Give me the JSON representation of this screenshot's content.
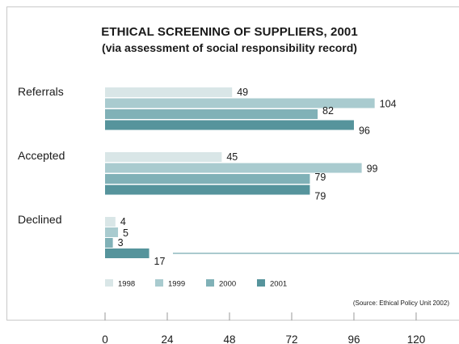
{
  "chart_data": {
    "type": "bar",
    "orientation": "horizontal",
    "title": "ETHICAL SCREENING OF SUPPLIERS, 2001",
    "subtitle": "(via assessment of social responsibility record)",
    "categories": [
      "Referrals",
      "Accepted",
      "Declined"
    ],
    "series": [
      {
        "name": "1998",
        "values": [
          49,
          45,
          4
        ],
        "color": "#d9e6e7"
      },
      {
        "name": "1999",
        "values": [
          104,
          99,
          5
        ],
        "color": "#a9cbcf"
      },
      {
        "name": "2000",
        "values": [
          82,
          79,
          3
        ],
        "color": "#80b1b7"
      },
      {
        "name": "2001",
        "values": [
          96,
          79,
          17
        ],
        "color": "#56949c"
      }
    ],
    "xticks": [
      "0",
      "24",
      "48",
      "72",
      "96",
      "120"
    ],
    "xlim": [
      0,
      120
    ],
    "grid": false,
    "legend_position": "bottom-left",
    "source": "(Source: Ethical Policy Unit 2002)"
  }
}
